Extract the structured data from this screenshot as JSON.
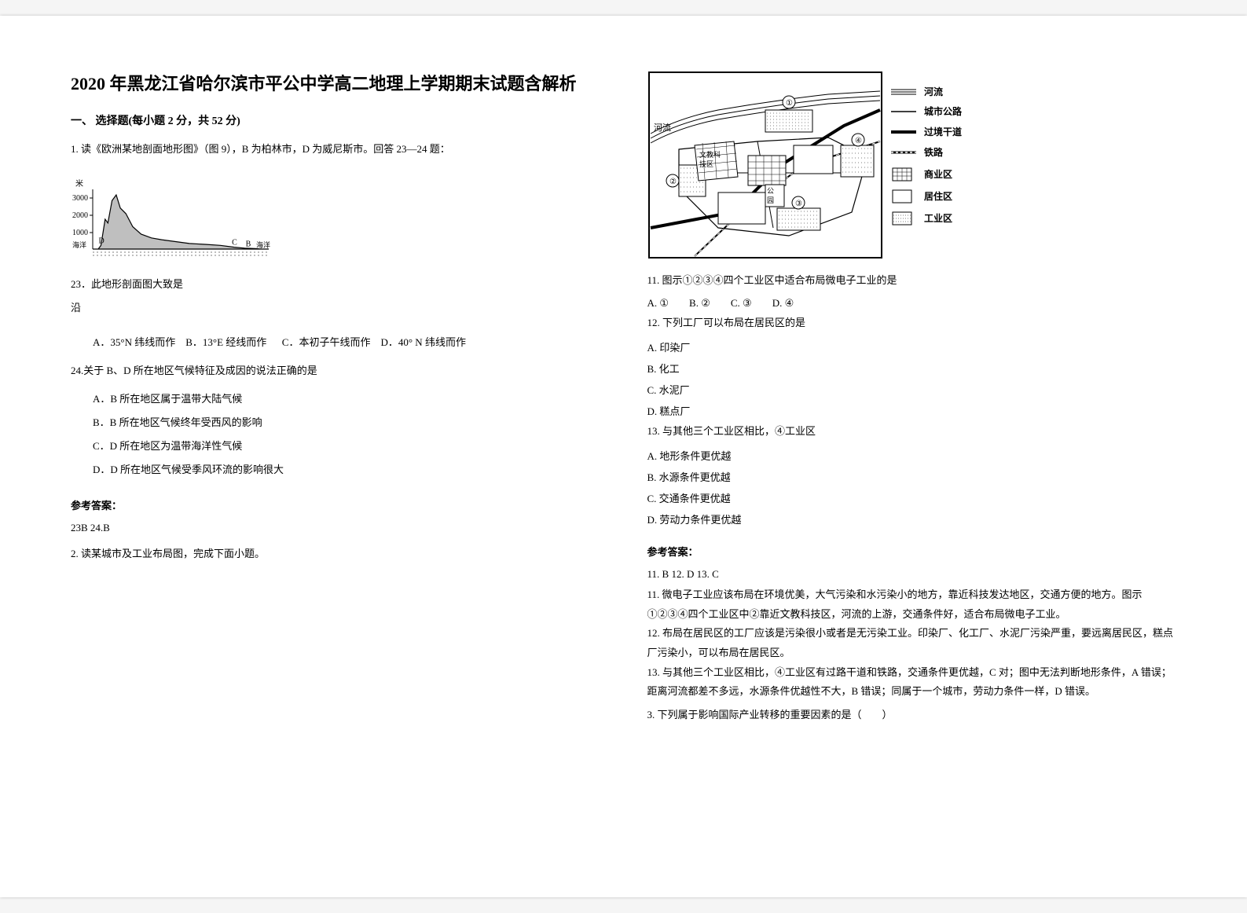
{
  "page": {
    "title_line1": "2020 年黑龙江省哈尔滨市平公中学高二地理上学期期末试题含解析",
    "section1_head": "一、 选择题(每小题 2 分，共 52 分)",
    "q1_intro": "1. 读《欧洲某地剖面地形图》（图 9），B 为柏林市，D 为威尼斯市。回答 23—24 题：",
    "q23": "23．此地形剖面图大致是",
    "q23_sub": "沿",
    "q23_opts": {
      "A": "A．35°N 纬线而作",
      "B": "B．13°E 经线而作",
      "C": "C．本初子午线而作",
      "D": "D．40° N 纬线而作"
    },
    "q24": "24.关于 B、D 所在地区气候特征及成因的说法正确的是",
    "q24_opts": {
      "A": "A．B 所在地区属于温带大陆气候",
      "B": "B．B 所在地区气候终年受西风的影响",
      "C": "C．D 所在地区为温带海洋性气候",
      "D": "D．D 所在地区气候受季风环流的影响很大"
    },
    "ans_head": "参考答案：",
    "ans_23_24": "23B    24.B",
    "q2_intro": "2. 读某城市及工业布局图，完成下面小题。",
    "q11": "11.  图示①②③④四个工业区中适合布局微电子工业的是",
    "q11_opts": {
      "A": "A. ①",
      "B": "B. ②",
      "C": "C. ③",
      "D": "D. ④"
    },
    "q12": "12.  下列工厂可以布局在居民区的是",
    "q12_opts": {
      "A": "A. 印染厂",
      "B": "B. 化工",
      "C": "C. 水泥厂",
      "D": "D. 糕点厂"
    },
    "q13": "13.  与其他三个工业区相比，④工业区",
    "q13_opts": {
      "A": "A. 地形条件更优越",
      "B": "B. 水源条件更优越",
      "C": "C. 交通条件更优越",
      "D": "D. 劳动力条件更优越"
    },
    "ans_11_13": "11. B        12. D        13. C",
    "exp_11": "11.  微电子工业应该布局在环境优美，大气污染和水污染小的地方，靠近科技发达地区，交通方便的地方。图示①②③④四个工业区中②靠近文教科技区，河流的上游，交通条件好，适合布局微电子工业。",
    "exp_12": "12.  布局在居民区的工厂应该是污染很小或者是无污染工业。印染厂、化工厂、水泥厂污染严重，要远离居民区，糕点厂污染小，可以布局在居民区。",
    "exp_13": "13.  与其他三个工业区相比，④工业区有过路干道和铁路，交通条件更优越，C 对；图中无法判断地形条件，A 错误；距离河流都差不多远，水源条件优越性不大，B 错误；同属于一个城市，劳动力条件一样，D 错误。",
    "q3_intro": "3. 下列属于影响国际产业转移的重要因素的是（　　）"
  },
  "chart": {
    "type": "elevation-profile",
    "y_axis_label": "米",
    "y_ticks": [
      1000,
      2000,
      3000
    ],
    "x_left_label": "海洋",
    "x_right_label": "海洋",
    "ylim": [
      0,
      3200
    ],
    "baseline_hatched": true,
    "points": [
      "D",
      "C",
      "B"
    ],
    "stroke_color": "#000000",
    "fill_color": "#bfbfbf",
    "line_width": 1.2,
    "font_size": 10,
    "profile": [
      [
        0,
        0
      ],
      [
        8,
        0
      ],
      [
        12,
        200
      ],
      [
        18,
        1600
      ],
      [
        22,
        1400
      ],
      [
        28,
        2600
      ],
      [
        34,
        2900
      ],
      [
        40,
        2200
      ],
      [
        48,
        1900
      ],
      [
        58,
        1200
      ],
      [
        70,
        800
      ],
      [
        85,
        600
      ],
      [
        100,
        500
      ],
      [
        120,
        400
      ],
      [
        140,
        300
      ],
      [
        165,
        250
      ],
      [
        185,
        200
      ],
      [
        205,
        100
      ],
      [
        220,
        50
      ],
      [
        235,
        30
      ],
      [
        245,
        0
      ],
      [
        255,
        0
      ]
    ],
    "point_positions": {
      "D": 12,
      "C": 205,
      "B": 225
    }
  },
  "city_map": {
    "type": "infographic-map",
    "background": "#ffffff",
    "border_color": "#000000",
    "river_label": "河流",
    "river_present_left": "河流",
    "legend": [
      {
        "key": "river",
        "label": "河流",
        "style": "triple-line",
        "color": "#000000"
      },
      {
        "key": "road",
        "label": "城市公路",
        "style": "solid",
        "color": "#000000"
      },
      {
        "key": "highway",
        "label": "过境干道",
        "style": "solid-thick",
        "color": "#000000"
      },
      {
        "key": "rail",
        "label": "铁路",
        "style": "rail",
        "color": "#000000"
      },
      {
        "key": "commercial",
        "label": "商业区",
        "style": "grid-fill",
        "color": "#000000"
      },
      {
        "key": "residential",
        "label": "居住区",
        "style": "outline",
        "color": "#000000"
      },
      {
        "key": "industrial",
        "label": "工业区",
        "style": "dot-fill",
        "color": "#000000"
      }
    ],
    "zones": {
      "tech_label": "文教科技区",
      "park_label": "公园",
      "circled_numbers": [
        "①",
        "②",
        "③",
        "④"
      ]
    }
  }
}
